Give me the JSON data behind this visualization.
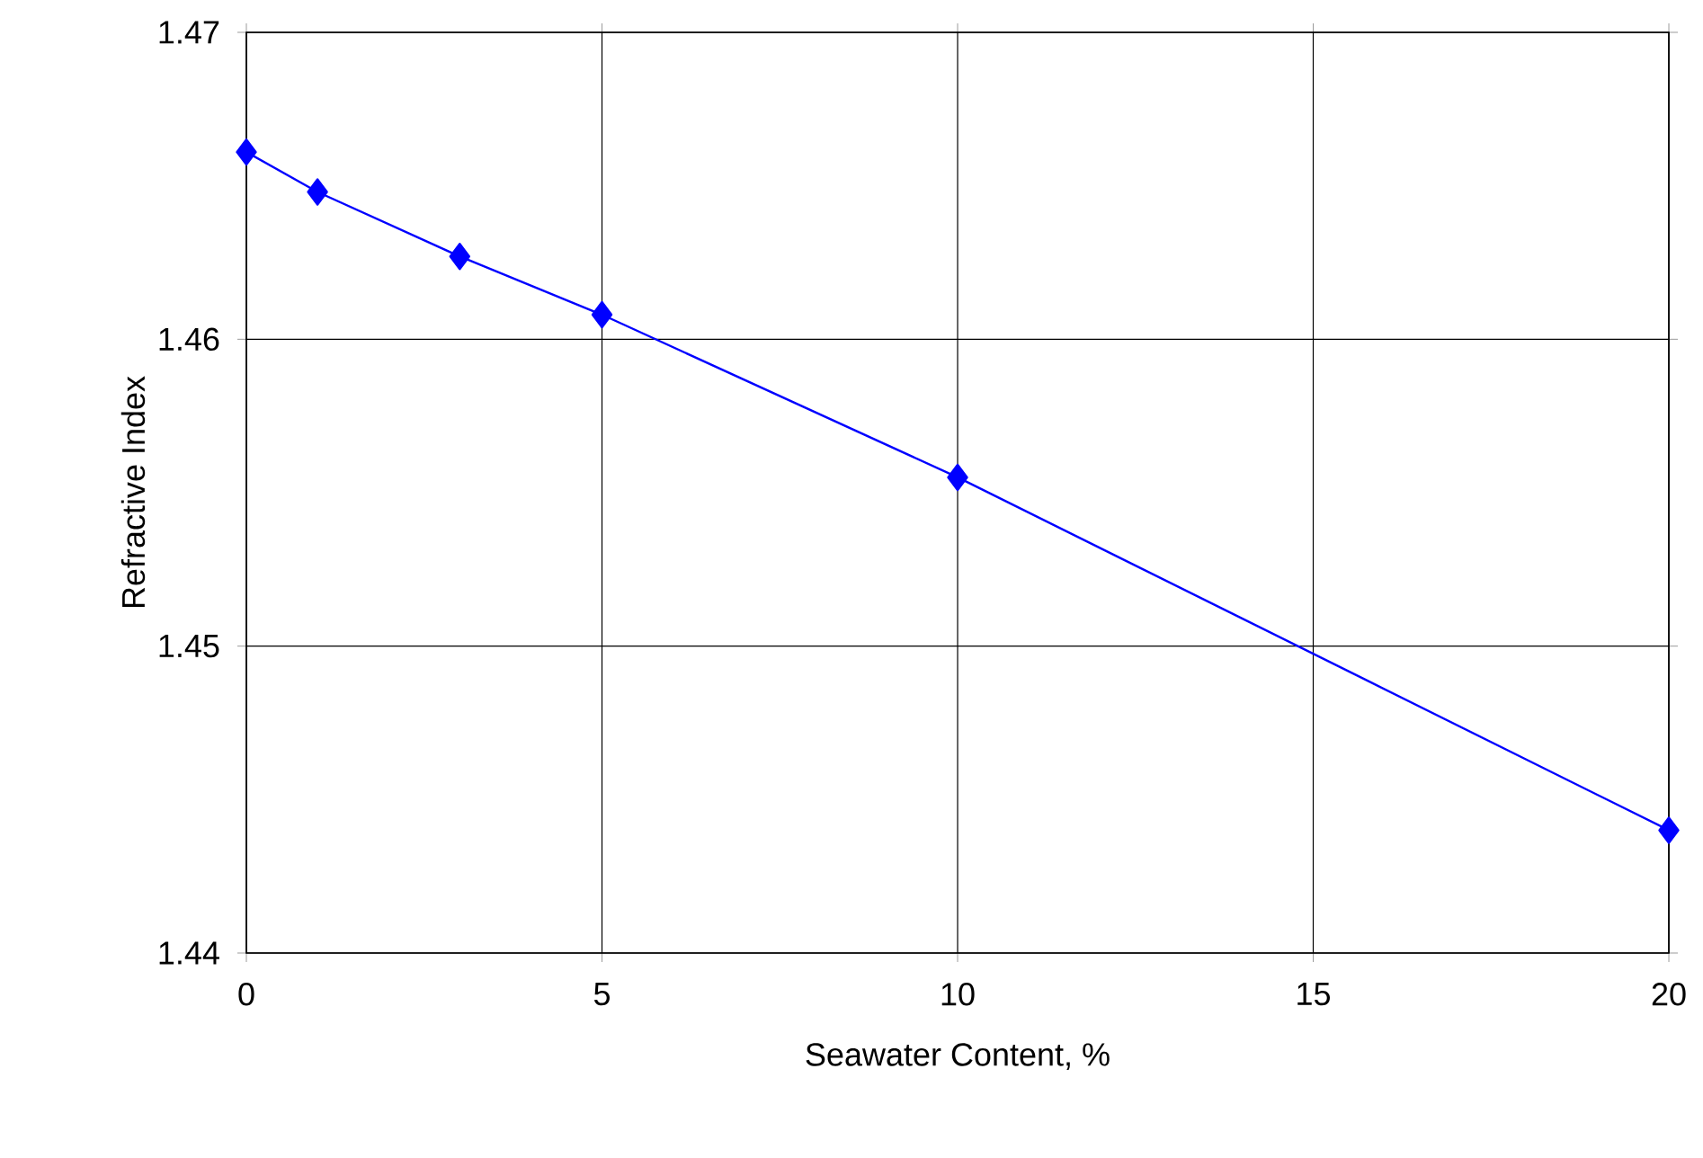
{
  "chart_data": {
    "type": "line",
    "xlabel": "Seawater Content, %",
    "ylabel": "Refractive Index",
    "x": [
      0,
      1,
      3,
      5,
      10,
      20
    ],
    "series": [
      {
        "color": "#0000ff",
        "values": [
          1.4661,
          1.4648,
          1.4627,
          1.4608,
          1.4555,
          1.444
        ]
      }
    ],
    "xlim": [
      0,
      20
    ],
    "ylim": [
      1.44,
      1.47
    ],
    "xticks": [
      0,
      5,
      10,
      15,
      20
    ],
    "yticks": [
      1.44,
      1.45,
      1.46,
      1.47
    ],
    "grid": true,
    "marker": "diamond",
    "line_style": "solid"
  }
}
